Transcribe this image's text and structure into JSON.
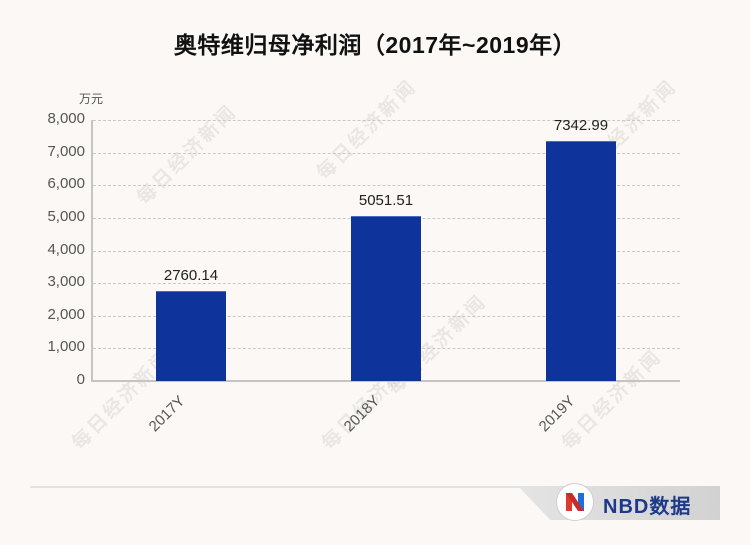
{
  "title": "奥特维归母净利润（2017年~2019年）",
  "unit": "万元",
  "watermark": "每日经济新闻",
  "brand": {
    "name": "NBD数据",
    "colors": {
      "text": "#1d3a8a",
      "logo_red": "#e0392b",
      "logo_blue": "#1e6fd9"
    }
  },
  "colors": {
    "bar": "#0e339a",
    "background": "#fcf8f5",
    "axis": "#c4c4c4",
    "grid": "#c9c9c9"
  },
  "y_ticks": [
    "0",
    "1,000",
    "2,000",
    "3,000",
    "4,000",
    "5,000",
    "6,000",
    "7,000",
    "8,000"
  ],
  "bars": [
    {
      "category": "2017Y",
      "label": "2760.14"
    },
    {
      "category": "2018Y",
      "label": "5051.51"
    },
    {
      "category": "2019Y",
      "label": "7342.99"
    }
  ],
  "chart_data": {
    "type": "bar",
    "title": "奥特维归母净利润（2017年~2019年）",
    "categories": [
      "2017Y",
      "2018Y",
      "2019Y"
    ],
    "values": [
      2760.14,
      5051.51,
      7342.99
    ],
    "xlabel": "",
    "ylabel": "万元",
    "ylim": [
      0,
      8000
    ],
    "yticks": [
      0,
      1000,
      2000,
      3000,
      4000,
      5000,
      6000,
      7000,
      8000
    ],
    "grid": true,
    "grid_style": "dashed horizontal",
    "legend": null,
    "data_labels": true,
    "bar_color": "#0e339a"
  }
}
